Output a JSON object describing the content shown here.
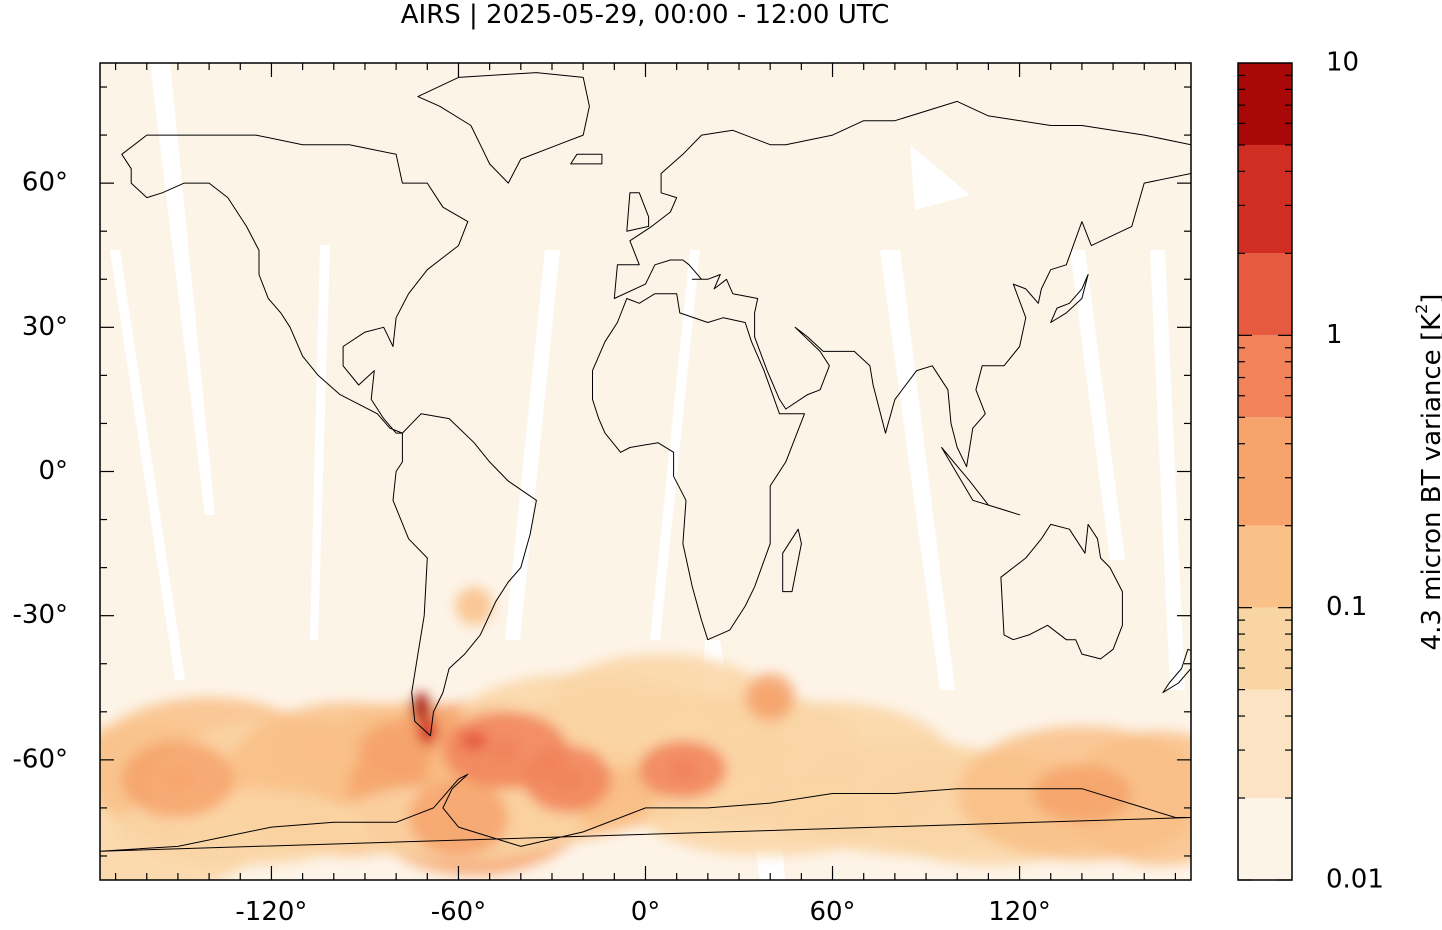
{
  "title": "AIRS | 2025-05-29, 00:00 - 12:00 UTC",
  "map": {
    "type": "heatmap",
    "projection": "plate carree",
    "lon_range": [
      -175,
      175
    ],
    "lat_range": [
      -85,
      85
    ],
    "x_ticks": [
      {
        "value": -120,
        "label": "-120°"
      },
      {
        "value": -60,
        "label": "-60°"
      },
      {
        "value": 0,
        "label": "0°"
      },
      {
        "value": 60,
        "label": "60°"
      },
      {
        "value": 120,
        "label": "120°"
      }
    ],
    "y_ticks": [
      {
        "value": 60,
        "label": "60°"
      },
      {
        "value": 30,
        "label": "30°"
      },
      {
        "value": 0,
        "label": "0°"
      },
      {
        "value": -30,
        "label": "-30°"
      },
      {
        "value": -60,
        "label": "-60°"
      }
    ],
    "background_color": "#fdf4e8",
    "coastline_color": "#000000"
  },
  "colorbar": {
    "label_main": "4.3 micron BT variance [K",
    "label_sup": "2",
    "label_end": "]",
    "scale": "log",
    "range": [
      0.01,
      10
    ],
    "ticks": [
      {
        "value": 10,
        "label": "10"
      },
      {
        "value": 1,
        "label": "1"
      },
      {
        "value": 0.1,
        "label": "0.1"
      },
      {
        "value": 0.01,
        "label": "0.01"
      }
    ],
    "colors": [
      "#fdf4e8",
      "#fbe3c4",
      "#fad5a4",
      "#f9c087",
      "#f6a36c",
      "#f1825a",
      "#e65a3f",
      "#d12e23",
      "#a80808"
    ]
  },
  "chart_data": {
    "type": "heatmap",
    "xlabel": "",
    "ylabel": "",
    "x_range": [
      -175,
      175
    ],
    "y_range": [
      -85,
      85
    ],
    "colorbar_range": [
      0.01,
      10
    ],
    "colorbar_scale": "log",
    "features": [
      {
        "lon": -72,
        "lat": -49,
        "level": 8
      },
      {
        "lon": -70,
        "lat": -54,
        "level": 7
      },
      {
        "lon": -55,
        "lat": -56,
        "level": 6
      },
      {
        "lon": -45,
        "lat": -58,
        "level": 5
      },
      {
        "lon": -25,
        "lat": -64,
        "level": 5
      },
      {
        "lon": 12,
        "lat": -62,
        "level": 5
      },
      {
        "lon": 140,
        "lat": -67,
        "level": 4
      },
      {
        "lon": -150,
        "lat": -64,
        "level": 4
      },
      {
        "lon": -105,
        "lat": -58,
        "level": 3
      },
      {
        "lon": 40,
        "lat": -47,
        "level": 4
      }
    ]
  }
}
